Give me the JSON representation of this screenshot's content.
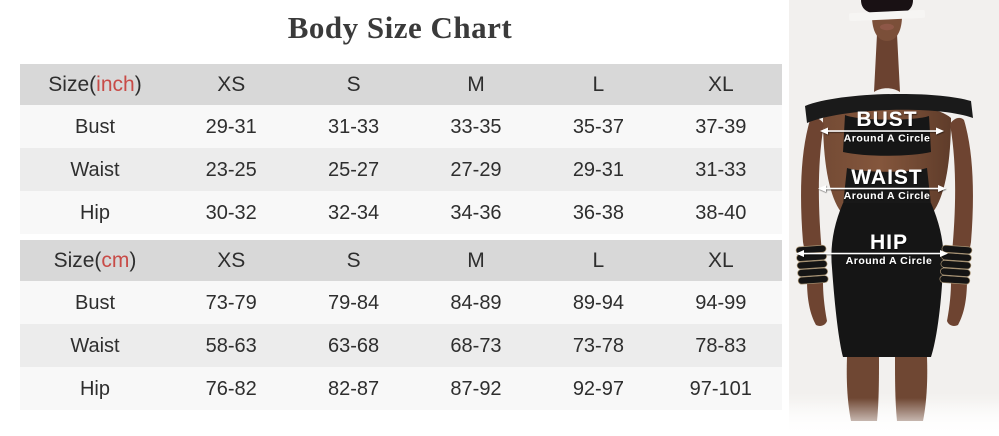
{
  "title": "Body Size Chart",
  "colors": {
    "accent_red": "#c84b47",
    "header_bg": "#d8d8d8",
    "row_light": "#f8f8f8",
    "row_mid": "#ececec",
    "text": "#2e2e2e"
  },
  "chart_data": [
    {
      "type": "table",
      "title": "Size(inch)",
      "unit_prefix": "Size(",
      "unit": "inch",
      "unit_suffix": ")",
      "size_headers": [
        "XS",
        "S",
        "M",
        "L",
        "XL"
      ],
      "rows": [
        {
          "label": "Bust",
          "values": [
            "29-31",
            "31-33",
            "33-35",
            "35-37",
            "37-39"
          ]
        },
        {
          "label": "Waist",
          "values": [
            "23-25",
            "25-27",
            "27-29",
            "29-31",
            "31-33"
          ]
        },
        {
          "label": "Hip",
          "values": [
            "30-32",
            "32-34",
            "34-36",
            "36-38",
            "38-40"
          ]
        }
      ]
    },
    {
      "type": "table",
      "title": "Size(cm)",
      "unit_prefix": "Size(",
      "unit": "cm",
      "unit_suffix": ")",
      "size_headers": [
        "XS",
        "S",
        "M",
        "L",
        "XL"
      ],
      "rows": [
        {
          "label": "Bust",
          "values": [
            "73-79",
            "79-84",
            "84-89",
            "89-94",
            "94-99"
          ]
        },
        {
          "label": "Waist",
          "values": [
            "58-63",
            "63-68",
            "68-73",
            "73-78",
            "78-83"
          ]
        },
        {
          "label": "Hip",
          "values": [
            "76-82",
            "82-87",
            "87-92",
            "92-97",
            "97-101"
          ]
        }
      ]
    }
  ],
  "figure": {
    "measurements": [
      {
        "name": "BUST",
        "caption": "Around A Circle"
      },
      {
        "name": "WAIST",
        "caption": "Around A Circle"
      },
      {
        "name": "HIP",
        "caption": "Around A Circle"
      }
    ]
  }
}
